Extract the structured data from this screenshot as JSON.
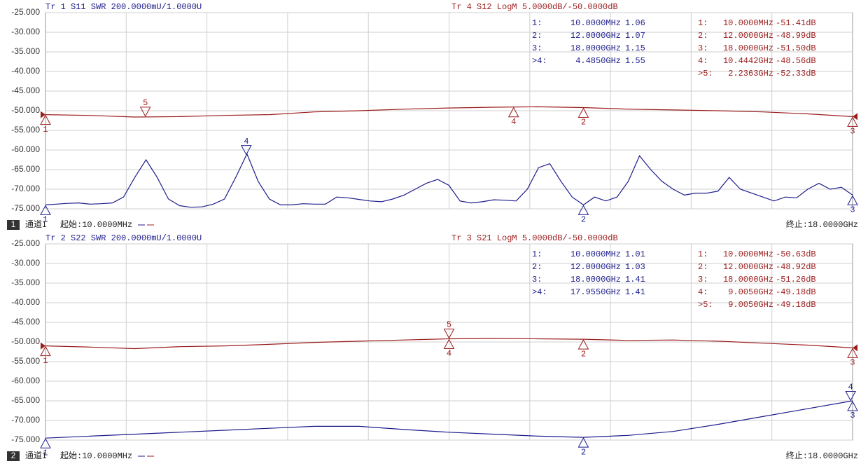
{
  "chart_data": [
    {
      "type": "line",
      "title": "Tr 1  S11 SWR 200.0000mU/1.0000U",
      "title2": "Tr 4  S12 LogM 5.0000dB/-50.0000dB",
      "xlim": [
        0.01,
        18
      ],
      "ylim": [
        -75,
        -25
      ],
      "yticks": [
        {
          "value": -25,
          "label": "-25.000"
        },
        {
          "value": -30,
          "label": "-30.000"
        },
        {
          "value": -35,
          "label": "-35.000"
        },
        {
          "value": -40,
          "label": "-40.000"
        },
        {
          "value": -45,
          "label": "-45.000"
        },
        {
          "value": -50,
          "label": "-50.000"
        },
        {
          "value": -55,
          "label": "-55.000"
        },
        {
          "value": -60,
          "label": "-60.000"
        },
        {
          "value": -65,
          "label": "-65.000"
        },
        {
          "value": -70,
          "label": "-70.000"
        },
        {
          "value": -75,
          "label": "-75.000"
        }
      ],
      "grid": true,
      "channel": "1",
      "channel_label": "通道1",
      "start": "起始:10.0000MHz",
      "stop": "终止:18.0000GHz",
      "series": [
        {
          "color": "#9b1c1c",
          "x": [
            0.01,
            1,
            2,
            3,
            4,
            5,
            6,
            7,
            8,
            9,
            10,
            11,
            12,
            13,
            14,
            15,
            16,
            17,
            18
          ],
          "values": [
            -51,
            -51.2,
            -51.6,
            -51.5,
            -51.2,
            -51,
            -50.3,
            -50,
            -49.6,
            -49.3,
            -49.1,
            -49,
            -49.2,
            -49.6,
            -49.8,
            -50,
            -50.3,
            -50.8,
            -51.5
          ],
          "markers": [
            {
              "id": "1",
              "label": "1:",
              "freq": "10.0000MHz",
              "value": "-51.41dB"
            },
            {
              "id": "2",
              "label": "2:",
              "freq": "12.0000GHz",
              "value": "-48.99dB"
            },
            {
              "id": "3",
              "label": "3:",
              "freq": "18.0000GHz",
              "value": "-51.50dB"
            },
            {
              "id": "4",
              "label": "4:",
              "freq": "10.4442GHz",
              "value": "-48.56dB"
            },
            {
              "id": "5",
              "label": ">5:",
              "freq": "2.2363GHz",
              "value": "-52.33dB"
            }
          ]
        },
        {
          "color": "#1c1c8c",
          "x": [
            0.01,
            0.25,
            0.5,
            0.75,
            1,
            1.25,
            1.5,
            1.75,
            2,
            2.25,
            2.5,
            2.75,
            3,
            3.25,
            3.5,
            3.75,
            4,
            4.25,
            4.5,
            4.75,
            5,
            5.25,
            5.5,
            5.75,
            6,
            6.25,
            6.5,
            6.75,
            7,
            7.25,
            7.5,
            7.75,
            8,
            8.25,
            8.5,
            8.75,
            9,
            9.25,
            9.5,
            9.75,
            10,
            10.25,
            10.5,
            10.75,
            11,
            11.25,
            11.5,
            11.75,
            12,
            12.25,
            12.5,
            12.75,
            13,
            13.25,
            13.5,
            13.75,
            14,
            14.25,
            14.5,
            14.75,
            15,
            15.25,
            15.5,
            15.75,
            16,
            16.25,
            16.5,
            16.75,
            17,
            17.25,
            17.5,
            17.75,
            18
          ],
          "values": [
            -74,
            -73.8,
            -73.6,
            -73.5,
            -73.8,
            -73.7,
            -73.5,
            -72,
            -67,
            -62.5,
            -67,
            -72.5,
            -74.2,
            -74.6,
            -74.5,
            -73.8,
            -72.5,
            -67,
            -61,
            -68,
            -72.5,
            -74,
            -74,
            -73.7,
            -73.8,
            -73.8,
            -72,
            -72.2,
            -72.6,
            -73,
            -73.2,
            -72.5,
            -71.5,
            -70,
            -68.5,
            -67.5,
            -69,
            -73,
            -73.5,
            -73.2,
            -72.7,
            -72.8,
            -73,
            -70,
            -64.5,
            -63.5,
            -68,
            -72,
            -74,
            -72,
            -73,
            -72,
            -68,
            -61.5,
            -65,
            -68,
            -70,
            -71.5,
            -71,
            -71,
            -70.5,
            -67,
            -70,
            -71,
            -72,
            -73,
            -72,
            -72.2,
            -70,
            -68.5,
            -70,
            -69.5,
            -71.5
          ],
          "markers": [
            {
              "id": "1",
              "label": "1:",
              "freq": "10.0000MHz",
              "value": "1.06"
            },
            {
              "id": "2",
              "label": "2:",
              "freq": "12.0000GHz",
              "value": "1.07"
            },
            {
              "id": "3",
              "label": "3:",
              "freq": "18.0000GHz",
              "value": "1.15"
            },
            {
              "id": "4",
              "label": ">4:",
              "freq": "4.4850GHz",
              "value": "1.55"
            }
          ]
        }
      ]
    },
    {
      "type": "line",
      "title": "Tr 2  S22 SWR 200.0000mU/1.0000U",
      "title2": "Tr 3  S21 LogM 5.0000dB/-50.0000dB",
      "xlim": [
        0.01,
        18
      ],
      "ylim": [
        -75,
        -25
      ],
      "yticks": [
        {
          "value": -25,
          "label": "-25.000"
        },
        {
          "value": -30,
          "label": "-30.000"
        },
        {
          "value": -35,
          "label": "-35.000"
        },
        {
          "value": -40,
          "label": "-40.000"
        },
        {
          "value": -45,
          "label": "-45.000"
        },
        {
          "value": -50,
          "label": "-50.000"
        },
        {
          "value": -55,
          "label": "-55.000"
        },
        {
          "value": -60,
          "label": "-60.000"
        },
        {
          "value": -65,
          "label": "-65.000"
        },
        {
          "value": -70,
          "label": "-70.000"
        },
        {
          "value": -75,
          "label": "-75.000"
        }
      ],
      "grid": true,
      "channel": "2",
      "channel_label": "通道1",
      "start": "起始:10.0000MHz",
      "stop": "终止:18.0000GHz",
      "series": [
        {
          "color": "#9b1c1c",
          "x": [
            0.01,
            1,
            2,
            3,
            4,
            5,
            6,
            7,
            8,
            9,
            10,
            11,
            12,
            13,
            14,
            15,
            16,
            17,
            18
          ],
          "values": [
            -51,
            -51.3,
            -51.7,
            -51.2,
            -51,
            -50.6,
            -50.1,
            -49.8,
            -49.5,
            -49.2,
            -49.1,
            -49.2,
            -49.3,
            -49.6,
            -49.5,
            -49.8,
            -50.3,
            -50.8,
            -51.5
          ],
          "markers": [
            {
              "id": "1",
              "label": "1:",
              "freq": "10.0000MHz",
              "value": "-50.63dB"
            },
            {
              "id": "2",
              "label": "2:",
              "freq": "12.0000GHz",
              "value": "-48.92dB"
            },
            {
              "id": "3",
              "label": "3:",
              "freq": "18.0000GHz",
              "value": "-51.26dB"
            },
            {
              "id": "4",
              "label": "4:",
              "freq": "9.0050GHz",
              "value": "-49.18dB"
            },
            {
              "id": "5",
              "label": ">5:",
              "freq": "9.0050GHz",
              "value": "-49.18dB"
            }
          ]
        },
        {
          "color": "#1c1c8c",
          "x": [
            0.01,
            1,
            2,
            3,
            4,
            5,
            6,
            7,
            8,
            9,
            10,
            11,
            12,
            13,
            14,
            15,
            16,
            17,
            18
          ],
          "values": [
            -74.5,
            -74,
            -73.5,
            -73,
            -72.5,
            -72,
            -71.5,
            -71.5,
            -72.3,
            -73,
            -73.5,
            -74,
            -74.3,
            -73.8,
            -72.8,
            -71,
            -69,
            -67,
            -65
          ],
          "markers": [
            {
              "id": "1",
              "label": "1:",
              "freq": "10.0000MHz",
              "value": "1.01"
            },
            {
              "id": "2",
              "label": "2:",
              "freq": "12.0000GHz",
              "value": "1.03"
            },
            {
              "id": "3",
              "label": "3:",
              "freq": "18.0000GHz",
              "value": "1.41"
            },
            {
              "id": "4",
              "label": ">4:",
              "freq": "17.9550GHz",
              "value": "1.41"
            }
          ]
        }
      ]
    }
  ]
}
